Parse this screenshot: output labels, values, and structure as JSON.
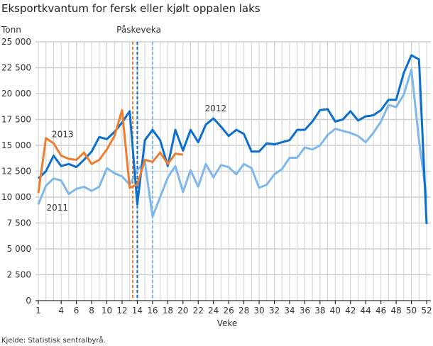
{
  "chart_data": {
    "type": "line",
    "title": "Eksportkvantum for fersk eller kjølt oppalen laks",
    "ylabel": "Tonn",
    "xlabel": "Veke",
    "source": "Kjelde: Statistisk sentralbyrå.",
    "ylim": [
      0,
      25000
    ],
    "xlim": [
      1,
      52
    ],
    "grid": true,
    "yticks": [
      0,
      2500,
      5000,
      7500,
      10000,
      12500,
      15000,
      17500,
      20000,
      22500,
      25000
    ],
    "ytick_labels": [
      "0",
      "2 500",
      "5 000",
      "7 500",
      "10 000",
      "12 500",
      "15 000",
      "17 500",
      "20 000",
      "22 500",
      "25 000"
    ],
    "xtick_labels": [
      "1",
      "4",
      "6",
      "8",
      "10",
      "12",
      "14",
      "16",
      "18",
      "20",
      "22",
      "24",
      "26",
      "28",
      "30",
      "32",
      "34",
      "36",
      "38",
      "40",
      "42",
      "44",
      "46",
      "48",
      "50",
      "52"
    ],
    "annotation": "Påskeveka",
    "easter_weeks": [
      {
        "week": 13.4,
        "color": "#ee7d2f"
      },
      {
        "week": 14.0,
        "color": "#0b6fce"
      },
      {
        "week": 16.0,
        "color": "#7eb8ea"
      }
    ],
    "series": [
      {
        "name": "2011",
        "color": "#7eb8ea",
        "label_week": 3.5,
        "label_value": 8700,
        "values": [
          9300,
          11100,
          11800,
          11600,
          10300,
          10800,
          11000,
          10600,
          11000,
          12800,
          12300,
          12000,
          11200,
          12600,
          13400,
          8100,
          10000,
          11900,
          13000,
          10500,
          12600,
          11000,
          13200,
          11900,
          13100,
          12900,
          12200,
          13200,
          12800,
          10900,
          11200,
          12200,
          12700,
          13800,
          13800,
          14800,
          14600,
          15000,
          16000,
          16600,
          16400,
          16200,
          15900,
          15300,
          16200,
          17300,
          18900,
          18700,
          19900,
          22300,
          15500,
          9900
        ]
      },
      {
        "name": "2012",
        "color": "#0b6fce",
        "label_week": 24.3,
        "label_value": 18300,
        "values": [
          11800,
          12500,
          14000,
          13000,
          13200,
          12900,
          13600,
          14400,
          15800,
          15600,
          16300,
          17200,
          18300,
          9300,
          15500,
          16500,
          15500,
          13000,
          16500,
          14500,
          16500,
          15300,
          17000,
          17600,
          16800,
          15900,
          16500,
          16100,
          14400,
          14400,
          15200,
          15100,
          15300,
          15500,
          16500,
          16500,
          17300,
          18400,
          18500,
          17300,
          17500,
          18300,
          17400,
          17800,
          17900,
          18400,
          19400,
          19400,
          22000,
          23700,
          23300,
          7400
        ]
      },
      {
        "name": "2013",
        "color": "#ee7d2f",
        "label_week": 4.2,
        "label_value": 15800,
        "values": [
          10400,
          15700,
          15200,
          14000,
          13700,
          13600,
          14300,
          13200,
          13600,
          14600,
          15900,
          18400,
          10900,
          11200,
          13600,
          13400,
          14300,
          13200,
          14200,
          14100
        ]
      }
    ]
  }
}
